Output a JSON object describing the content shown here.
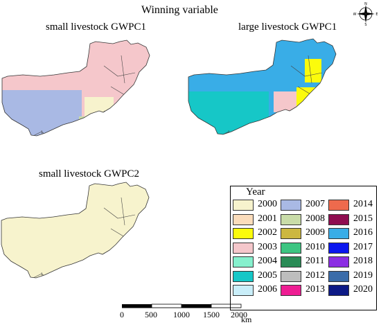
{
  "title": "Winning variable",
  "maps": [
    {
      "title": "small livestock GWPC1"
    },
    {
      "title": "large livestock GWPC1"
    },
    {
      "title": "small livestock GWPC2"
    }
  ],
  "legend": {
    "title": "Year",
    "items": [
      {
        "year": "2000",
        "color": "#f7f3cd"
      },
      {
        "year": "2001",
        "color": "#fbdcbb"
      },
      {
        "year": "2002",
        "color": "#fbfb0c"
      },
      {
        "year": "2003",
        "color": "#f5c7cb"
      },
      {
        "year": "2004",
        "color": "#86f0cd"
      },
      {
        "year": "2005",
        "color": "#16c7c7"
      },
      {
        "year": "2006",
        "color": "#c9eef9"
      },
      {
        "year": "2007",
        "color": "#a9b9e4"
      },
      {
        "year": "2008",
        "color": "#c9dca8"
      },
      {
        "year": "2009",
        "color": "#ccb740"
      },
      {
        "year": "2010",
        "color": "#3dc582"
      },
      {
        "year": "2011",
        "color": "#2a8b56"
      },
      {
        "year": "2012",
        "color": "#bdbdbd"
      },
      {
        "year": "2013",
        "color": "#ee1d93"
      },
      {
        "year": "2014",
        "color": "#ee6a4d"
      },
      {
        "year": "2015",
        "color": "#8f0d50"
      },
      {
        "year": "2016",
        "color": "#39ade7"
      },
      {
        "year": "2017",
        "color": "#0a16ee"
      },
      {
        "year": "2018",
        "color": "#8b2ee3"
      },
      {
        "year": "2019",
        "color": "#3a6ca9"
      },
      {
        "year": "2020",
        "color": "#0d1a86"
      }
    ]
  },
  "scale_bar": {
    "ticks": [
      "0",
      "500",
      "1000",
      "1500",
      "2000"
    ],
    "unit": "km"
  },
  "compass": {
    "n": "N",
    "e": "E",
    "s": "S",
    "w": "W",
    "icon": "compass-rose-icon"
  }
}
